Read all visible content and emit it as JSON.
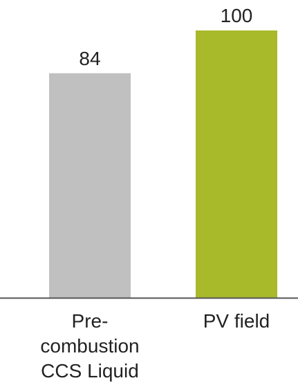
{
  "chart_data": {
    "type": "bar",
    "categories": [
      [
        "Pre-",
        "combustion",
        "CCS Liquid"
      ],
      [
        "PV field"
      ]
    ],
    "values": [
      84,
      100
    ],
    "value_labels": [
      "84",
      "100"
    ],
    "ylim": [
      0,
      100
    ],
    "grid": false,
    "colors": [
      "#c0c0c0",
      "#a8b92a"
    ],
    "axis_color": "#555555"
  }
}
